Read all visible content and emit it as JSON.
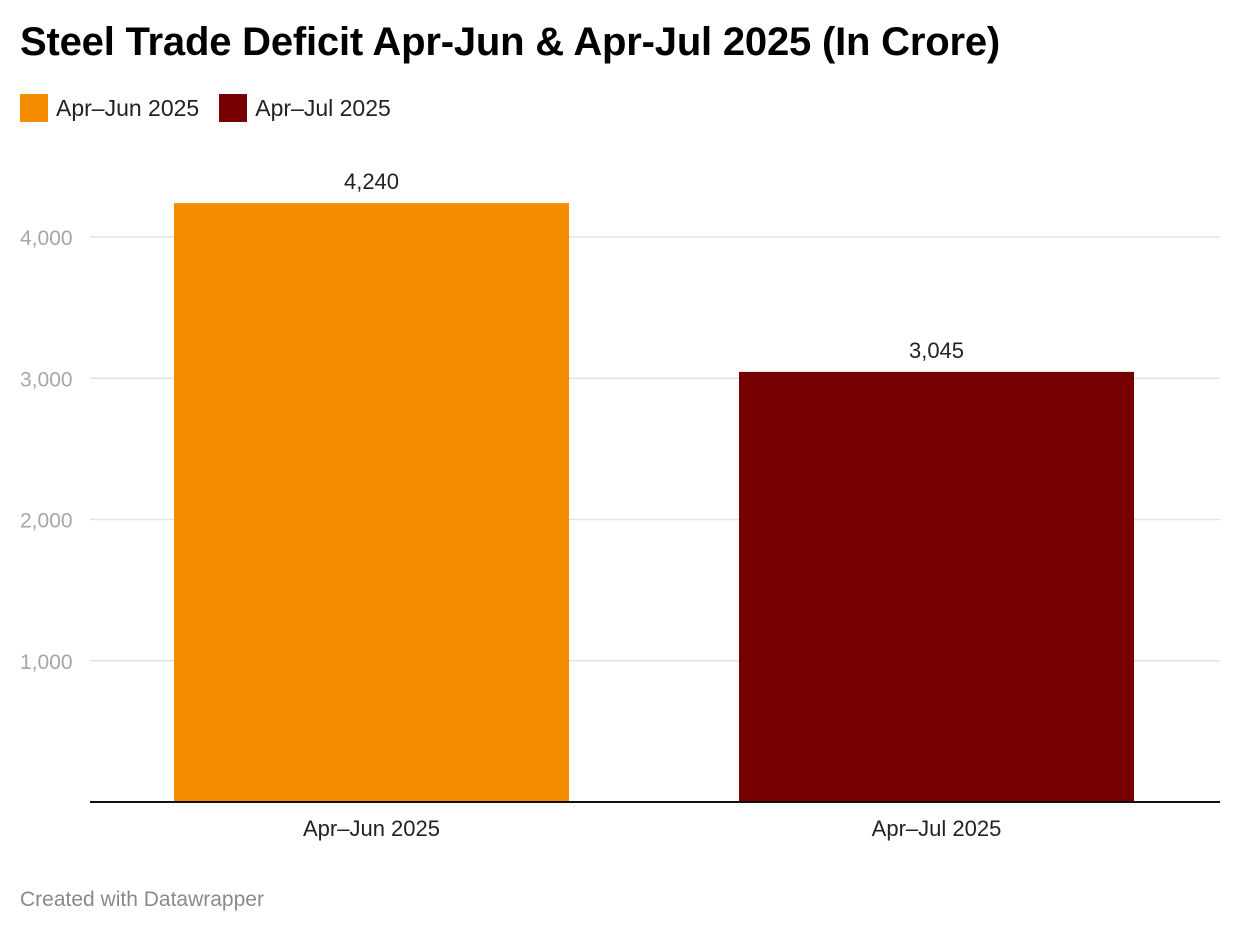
{
  "chart_data": {
    "type": "bar",
    "title": "Steel Trade Deficit Apr-Jun & Apr-Jul 2025 (In Crore)",
    "categories": [
      "Apr–Jun 2025",
      "Apr–Jul 2025"
    ],
    "values": [
      4240,
      3045
    ],
    "value_labels": [
      "4,240",
      "3,045"
    ],
    "colors": [
      "#f78c00",
      "#760000"
    ],
    "legend": [
      {
        "label": "Apr–Jun 2025",
        "color": "#f78c00"
      },
      {
        "label": "Apr–Jul 2025",
        "color": "#760000"
      }
    ],
    "legend_position": "top-left",
    "yticks": [
      1000,
      2000,
      3000,
      4000
    ],
    "ytick_labels": [
      "1,000",
      "2,000",
      "3,000",
      "4,000"
    ],
    "ylim": [
      0,
      4240
    ],
    "grid": true,
    "xlabel": "",
    "ylabel": ""
  },
  "footer": {
    "credit": "Created with Datawrapper"
  }
}
